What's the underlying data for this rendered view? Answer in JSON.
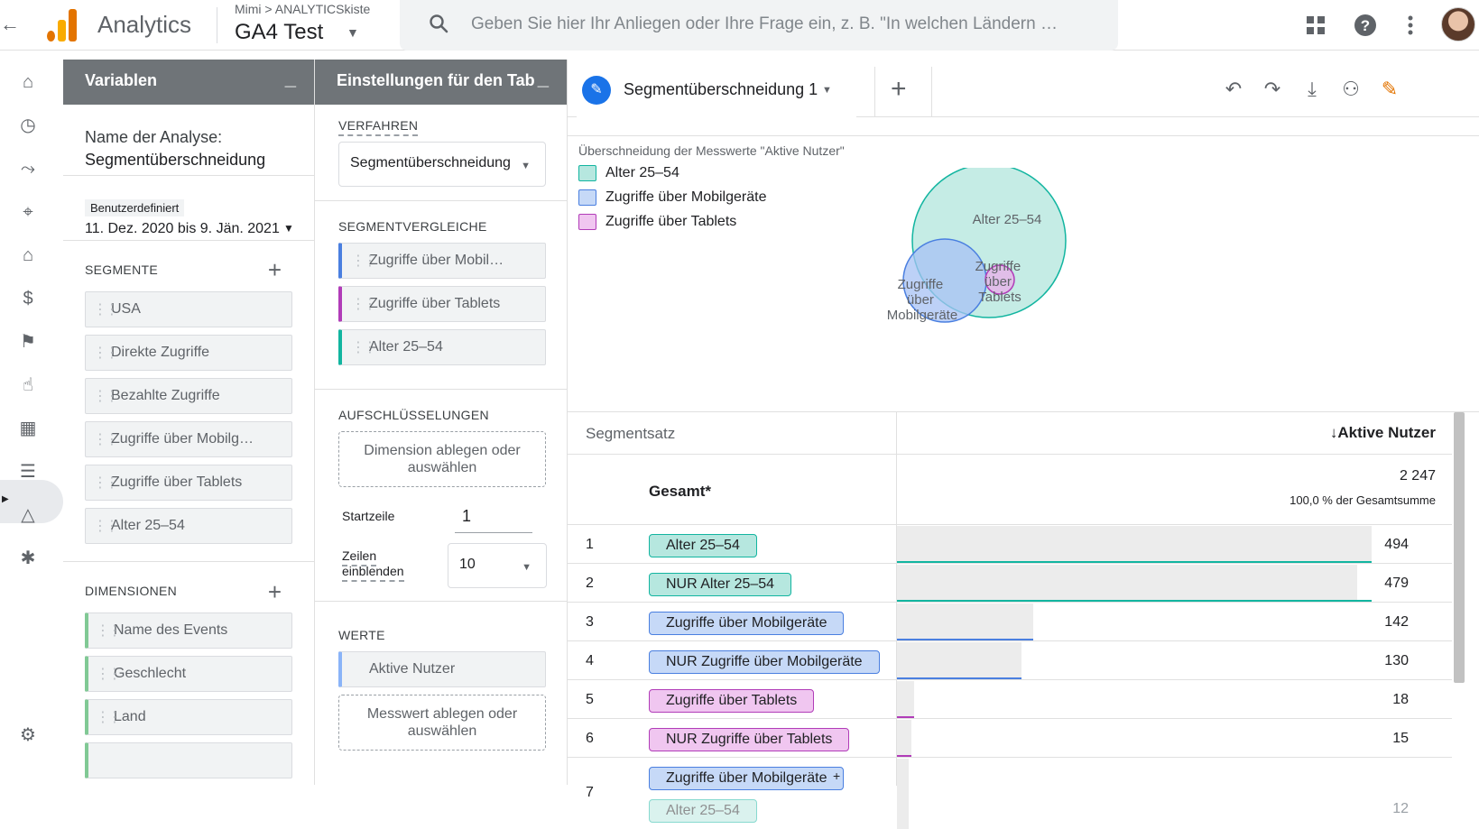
{
  "topbar": {
    "app_name": "Analytics",
    "account_crumb": "Mimi > ANALYTICSkiste",
    "property_name": "GA4 Test",
    "search_placeholder": "Geben Sie hier Ihr Anliegen oder Ihre Frage ein, z. B. \"In welchen Ländern …"
  },
  "variables": {
    "header": "Variablen",
    "analysis_name_label": "Name der Analyse:",
    "analysis_name_value": "Segmentüberschneidung",
    "date_tag": "Benutzerdefiniert",
    "date_range": "11. Dez. 2020 bis 9. Jän. 2021",
    "segments_title": "SEGMENTE",
    "segments": [
      "USA",
      "Direkte Zugriffe",
      "Bezahlte Zugriffe",
      "Zugriffe über Mobilg…",
      "Zugriffe über Tablets",
      "Alter 25–54"
    ],
    "dimensions_title": "DIMENSIONEN",
    "dimensions": [
      "Name des Events",
      "Geschlecht",
      "Land"
    ]
  },
  "tab_settings": {
    "header": "Einstellungen für den Tab",
    "method_title": "VERFAHREN",
    "method_value": "Segmentüberschneidung",
    "seg_compare_title": "SEGMENTVERGLEICHE",
    "seg_compare": [
      {
        "label": "Zugriffe über Mobil…",
        "color": "#4a7fe0"
      },
      {
        "label": "Zugriffe über Tablets",
        "color": "#b13cb8"
      },
      {
        "label": "Alter 25–54",
        "color": "#12b5a0"
      }
    ],
    "breakdowns_title": "AUFSCHLÜSSELUNGEN",
    "breakdowns_drop": "Dimension ablegen oder auswählen",
    "start_row_label": "Startzeile",
    "start_row_value": "1",
    "rows_label": "Zeilen einblenden",
    "rows_value": "10",
    "values_title": "WERTE",
    "values_chip": "Aktive Nutzer",
    "values_drop": "Messwert ablegen oder auswählen"
  },
  "canvas": {
    "tab_label": "Segmentüberschneidung 1",
    "chart_title": "Überschneidung der Messwerte \"Aktive Nutzer\"",
    "legend": [
      {
        "label": "Alter 25–54",
        "color": "#b6e7df",
        "border": "#12b5a0"
      },
      {
        "label": "Zugriffe über Mobilgeräte",
        "color": "#c6d9f7",
        "border": "#4a7fe0"
      },
      {
        "label": "Zugriffe über Tablets",
        "color": "#f0c6f0",
        "border": "#b13cb8"
      }
    ],
    "venn_labels": {
      "age": "Alter 25–54",
      "mobile": [
        "Zugriffe",
        "über",
        "Mobilgeräte"
      ],
      "tablet": [
        "Zugriffe",
        "über",
        "Tablets"
      ]
    }
  },
  "table": {
    "col_segment": "Segmentsatz",
    "col_metric": "↓Aktive Nutzer",
    "total_label": "Gesamt*",
    "total_value": "2 247",
    "total_pct": "100,0 % der Gesamtsumme",
    "max": 494,
    "rows": [
      {
        "idx": "1",
        "label": "Alter 25–54",
        "color": "teal",
        "value": 494
      },
      {
        "idx": "2",
        "label": "NUR Alter 25–54",
        "color": "teal",
        "value": 479
      },
      {
        "idx": "3",
        "label": "Zugriffe über Mobilgeräte",
        "color": "blue",
        "value": 142
      },
      {
        "idx": "4",
        "label": "NUR Zugriffe über Mobilgeräte",
        "color": "blue",
        "value": 130
      },
      {
        "idx": "5",
        "label": "Zugriffe über Tablets",
        "color": "purple",
        "value": 18
      },
      {
        "idx": "6",
        "label": "NUR Zugriffe über Tablets",
        "color": "purple",
        "value": 15
      },
      {
        "idx": "7",
        "label": "Zugriffe über Mobilgeräte",
        "label2": "Alter 25–54",
        "plus": "+",
        "color": "blue",
        "value": 12
      }
    ]
  }
}
